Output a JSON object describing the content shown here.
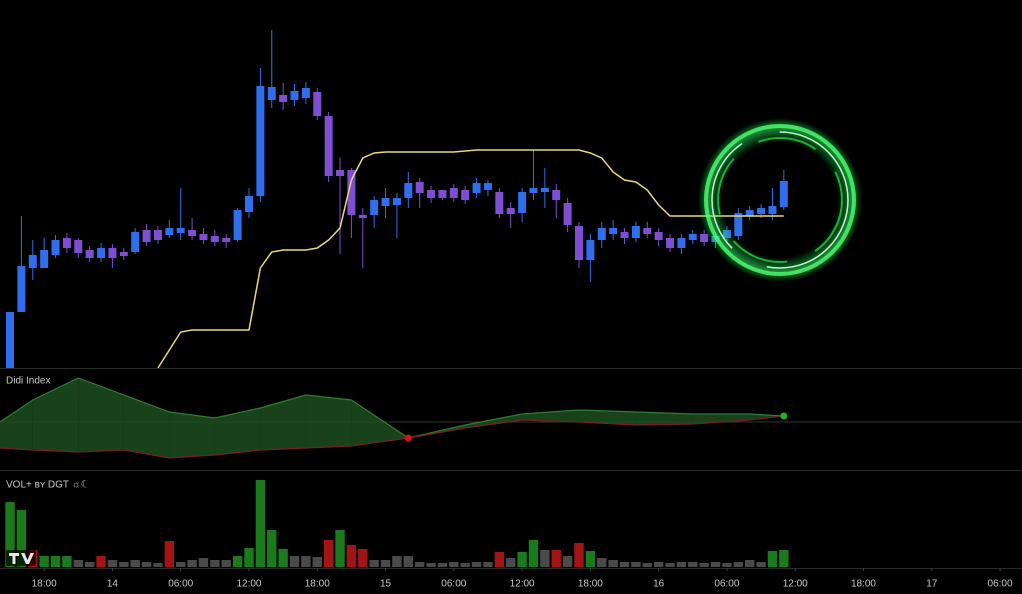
{
  "chart_data": [
    {
      "type": "candlestick",
      "xlim": [
        -0.88,
        88.93
      ],
      "ylim": [
        0,
        368
      ],
      "up_color": "#2f6fed",
      "down_color": "#7e4fd1",
      "x": [
        0,
        1,
        2,
        3,
        4,
        5,
        6,
        7,
        8,
        9,
        10,
        11,
        12,
        13,
        14,
        15,
        16,
        17,
        18,
        19,
        20,
        21,
        22,
        23,
        24,
        25,
        26,
        27,
        28,
        29,
        30,
        31,
        32,
        33,
        34,
        35,
        36,
        37,
        38,
        39,
        40,
        41,
        42,
        43,
        44,
        45,
        46,
        47,
        48,
        49,
        50,
        51,
        52,
        53,
        54,
        55,
        56,
        57,
        58,
        59,
        60,
        61,
        62,
        63,
        64,
        65,
        66,
        67,
        68
      ],
      "open": [
        0,
        56,
        100,
        100,
        113,
        130,
        128,
        118,
        110,
        120,
        116,
        116,
        138,
        138,
        133,
        135,
        138,
        134,
        132,
        130,
        128,
        156,
        172,
        268,
        273,
        268,
        270,
        276,
        252,
        198,
        198,
        153,
        153,
        162,
        163,
        170,
        186,
        178,
        178,
        180,
        178,
        175,
        178,
        176,
        160,
        155,
        175,
        176,
        178,
        165,
        142,
        108,
        128,
        134,
        136,
        130,
        140,
        136,
        130,
        120,
        128,
        134,
        126,
        130,
        132,
        152,
        154,
        154,
        161
      ],
      "high": [
        56,
        152,
        128,
        130,
        133,
        135,
        130,
        122,
        125,
        124,
        120,
        140,
        144,
        142,
        148,
        180,
        150,
        140,
        138,
        134,
        160,
        180,
        300,
        338,
        285,
        284,
        286,
        280,
        256,
        210,
        200,
        160,
        172,
        180,
        175,
        196,
        190,
        182,
        178,
        184,
        182,
        190,
        188,
        180,
        166,
        180,
        218,
        200,
        184,
        170,
        146,
        134,
        146,
        148,
        140,
        146,
        146,
        140,
        134,
        134,
        138,
        138,
        136,
        142,
        160,
        162,
        164,
        180,
        198
      ],
      "low": [
        0,
        56,
        88,
        100,
        110,
        115,
        110,
        106,
        106,
        100,
        108,
        114,
        122,
        124,
        130,
        128,
        128,
        124,
        122,
        120,
        126,
        150,
        166,
        260,
        258,
        262,
        264,
        248,
        186,
        114,
        130,
        100,
        140,
        150,
        130,
        160,
        160,
        165,
        168,
        166,
        164,
        170,
        172,
        150,
        140,
        146,
        168,
        160,
        150,
        136,
        100,
        86,
        120,
        128,
        124,
        126,
        130,
        122,
        116,
        114,
        124,
        122,
        120,
        124,
        128,
        148,
        150,
        148,
        158
      ],
      "close": [
        56,
        102,
        113,
        118,
        128,
        120,
        115,
        110,
        120,
        110,
        112,
        136,
        126,
        128,
        140,
        140,
        132,
        128,
        126,
        126,
        158,
        172,
        282,
        281,
        266,
        277,
        280,
        252,
        192,
        192,
        153,
        150,
        168,
        170,
        170,
        185,
        175,
        170,
        170,
        170,
        168,
        185,
        185,
        154,
        154,
        176,
        180,
        180,
        168,
        143,
        108,
        128,
        140,
        140,
        130,
        142,
        134,
        128,
        120,
        130,
        134,
        126,
        132,
        138,
        155,
        158,
        160,
        162,
        187
      ],
      "line": {
        "color": "#e8d87a",
        "values": [
          null,
          null,
          null,
          null,
          null,
          null,
          null,
          null,
          null,
          null,
          null,
          null,
          null,
          0,
          18,
          36,
          38,
          38,
          38,
          38,
          38,
          38,
          100,
          116,
          118,
          118,
          118,
          120,
          128,
          140,
          188,
          210,
          215,
          216,
          216,
          216,
          216,
          216,
          216,
          216,
          217,
          218,
          218,
          218,
          218,
          218,
          218,
          218,
          218,
          218,
          218,
          215,
          210,
          196,
          188,
          186,
          178,
          163,
          152,
          152,
          152,
          152,
          152,
          152,
          152,
          152,
          152,
          152,
          152
        ]
      }
    },
    {
      "type": "line",
      "title": "Didi Index",
      "xlim": [
        -0.88,
        88.93
      ],
      "ylim": [
        -48,
        54
      ],
      "x": [
        -0.88,
        2,
        6,
        10,
        14,
        18,
        22,
        26,
        30,
        35,
        40,
        45,
        50,
        55,
        60,
        65,
        68
      ],
      "series": [
        {
          "color": "#2e7d32",
          "values": [
            0,
            22,
            44,
            27,
            10,
            4,
            14,
            27,
            22,
            -16,
            -3,
            8,
            12,
            10,
            8,
            8,
            6
          ]
        },
        {
          "color": "#7a1f1f",
          "values": [
            -26,
            -28,
            -30,
            -28,
            -36,
            -33,
            -28,
            -26,
            -24,
            -16,
            -6,
            2,
            0,
            -3,
            -2,
            2,
            6
          ]
        }
      ],
      "up_fill": "#1f4d1f",
      "down_fill": "#5a1414",
      "dot_colors": [
        "#e01010",
        "#22b322"
      ]
    },
    {
      "type": "bar",
      "title": "VOL+ ʙʏ DGT ☼☾",
      "xlim": [
        -0.88,
        88.93
      ],
      "ylim": [
        0,
        97
      ],
      "x": [
        0,
        1,
        2,
        3,
        4,
        5,
        6,
        7,
        8,
        9,
        10,
        11,
        12,
        13,
        14,
        15,
        16,
        17,
        18,
        19,
        20,
        21,
        22,
        23,
        24,
        25,
        26,
        27,
        28,
        29,
        30,
        31,
        32,
        33,
        34,
        35,
        36,
        37,
        38,
        39,
        40,
        41,
        42,
        43,
        44,
        45,
        46,
        47,
        48,
        49,
        50,
        51,
        52,
        53,
        54,
        55,
        56,
        57,
        58,
        59,
        60,
        61,
        62,
        63,
        64,
        65,
        66,
        67,
        68
      ],
      "values": [
        65,
        57,
        17,
        11,
        11,
        11,
        7,
        5,
        11,
        7,
        5,
        7,
        5,
        4,
        26,
        5,
        7,
        9,
        7,
        7,
        11,
        19,
        87,
        37,
        18,
        11,
        11,
        10,
        27,
        37,
        22,
        18,
        7,
        7,
        11,
        11,
        5,
        4,
        4,
        5,
        4,
        5,
        5,
        15,
        9,
        15,
        27,
        17,
        17,
        11,
        24,
        16,
        9,
        7,
        5,
        5,
        4,
        5,
        4,
        5,
        5,
        4,
        5,
        4,
        5,
        7,
        5,
        16,
        17
      ],
      "colors": [
        "#1b7a1b",
        "#1b7a1b",
        "#a31414",
        "#1b7a1b",
        "#1b7a1b",
        "#1b7a1b",
        "#4a4a4a",
        "#4a4a4a",
        "#a31414",
        "#4a4a4a",
        "#4a4a4a",
        "#4a4a4a",
        "#4a4a4a",
        "#4a4a4a",
        "#a31414",
        "#4a4a4a",
        "#4a4a4a",
        "#4a4a4a",
        "#4a4a4a",
        "#4a4a4a",
        "#1b7a1b",
        "#1b7a1b",
        "#1b7a1b",
        "#1b7a1b",
        "#1b7a1b",
        "#4a4a4a",
        "#4a4a4a",
        "#4a4a4a",
        "#a31414",
        "#1b7a1b",
        "#a31414",
        "#a31414",
        "#4a4a4a",
        "#4a4a4a",
        "#4a4a4a",
        "#4a4a4a",
        "#4a4a4a",
        "#4a4a4a",
        "#4a4a4a",
        "#4a4a4a",
        "#4a4a4a",
        "#4a4a4a",
        "#4a4a4a",
        "#a31414",
        "#4a4a4a",
        "#1b7a1b",
        "#1b7a1b",
        "#4a4a4a",
        "#a31414",
        "#4a4a4a",
        "#a31414",
        "#1b7a1b",
        "#4a4a4a",
        "#4a4a4a",
        "#4a4a4a",
        "#4a4a4a",
        "#4a4a4a",
        "#4a4a4a",
        "#4a4a4a",
        "#4a4a4a",
        "#4a4a4a",
        "#4a4a4a",
        "#4a4a4a",
        "#4a4a4a",
        "#4a4a4a",
        "#4a4a4a",
        "#4a4a4a",
        "#1b7a1b",
        "#1b7a1b"
      ],
      "xticks": [
        {
          "value": 3,
          "label": "18:00"
        },
        {
          "value": 9,
          "label": "14"
        },
        {
          "value": 15,
          "label": "06:00"
        },
        {
          "value": 21,
          "label": "12:00"
        },
        {
          "value": 27,
          "label": "18:00"
        },
        {
          "value": 33,
          "label": "15"
        },
        {
          "value": 39,
          "label": "06:00"
        },
        {
          "value": 45,
          "label": "12:00"
        },
        {
          "value": 51,
          "label": "18:00"
        },
        {
          "value": 57,
          "label": "16"
        },
        {
          "value": 63,
          "label": "06:00"
        },
        {
          "value": 69,
          "label": "12:00"
        },
        {
          "value": 75,
          "label": "18:00"
        },
        {
          "value": 81,
          "label": "17"
        },
        {
          "value": 87,
          "label": "06:00"
        }
      ]
    }
  ]
}
